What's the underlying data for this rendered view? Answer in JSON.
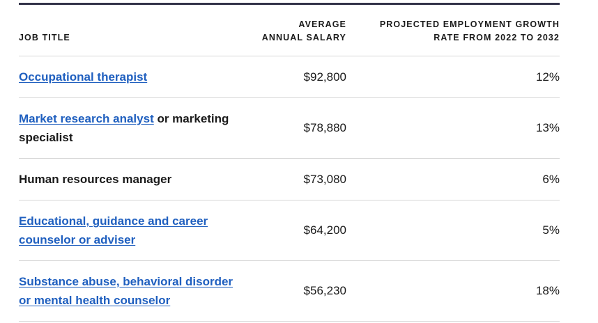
{
  "table": {
    "headers": {
      "job_title": "JOB TITLE",
      "salary_line1": "AVERAGE",
      "salary_line2": "ANNUAL SALARY",
      "growth_line1": "PROJECTED EMPLOYMENT GROWTH",
      "growth_line2": "RATE FROM 2022 TO 2032"
    },
    "rows": [
      {
        "link": "Occupational therapist",
        "rest": "",
        "salary": "$92,800",
        "growth": "12%"
      },
      {
        "link": "Market research analyst",
        "rest": " or marketing specialist",
        "salary": "$78,880",
        "growth": "13%"
      },
      {
        "link": "",
        "rest": "Human resources manager",
        "salary": "$73,080",
        "growth": "6%"
      },
      {
        "link": "Educational, guidance and career counselor or adviser",
        "rest": "",
        "salary": "$64,200",
        "growth": "5%"
      },
      {
        "link": "Substance abuse, behavioral disorder or mental health counselor",
        "rest": "",
        "salary": "$56,230",
        "growth": "18%"
      }
    ]
  },
  "colors": {
    "link": "#1f5fbf",
    "rule": "#33334a",
    "divider": "#d6d6d6"
  }
}
